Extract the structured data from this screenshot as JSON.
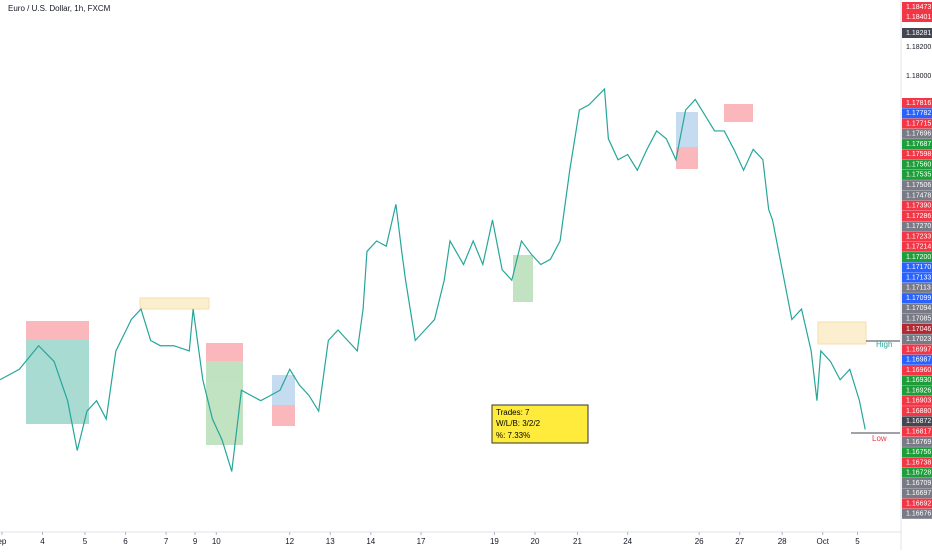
{
  "chart_data": {
    "type": "line",
    "title": "Euro / U.S. Dollar, 1h, FXCM",
    "x": [
      0,
      10,
      20,
      28,
      35,
      40,
      45,
      50,
      55,
      60,
      68,
      73,
      78,
      83,
      90,
      98,
      100,
      105,
      110,
      115,
      120,
      125,
      130,
      135,
      140,
      145,
      150,
      155,
      160,
      165,
      170,
      175,
      180,
      185,
      188,
      190,
      195,
      200,
      205,
      208,
      210,
      215,
      220,
      225,
      230,
      233,
      240,
      245,
      250,
      255,
      260,
      265,
      270,
      275,
      280,
      285,
      290,
      295,
      300,
      305,
      313,
      315,
      320,
      325,
      330,
      335,
      340,
      345,
      350,
      355,
      360,
      365,
      370,
      375,
      380,
      385,
      390,
      395,
      398,
      400,
      405,
      410,
      415,
      420,
      423,
      425,
      430,
      435,
      440,
      445,
      448
    ],
    "series": [
      {
        "name": "EURUSD",
        "color": "#26a69a",
        "values": [
          1.1715,
          1.1719,
          1.1728,
          1.1722,
          1.1707,
          1.1688,
          1.1703,
          1.1707,
          1.17,
          1.1726,
          1.1738,
          1.1742,
          1.173,
          1.1728,
          1.1728,
          1.1726,
          1.1742,
          1.1715,
          1.17,
          1.1692,
          1.168,
          1.1711,
          1.1709,
          1.1707,
          1.1709,
          1.1711,
          1.1719,
          1.1713,
          1.1709,
          1.1703,
          1.173,
          1.1734,
          1.173,
          1.1726,
          1.1742,
          1.1764,
          1.1768,
          1.1766,
          1.1782,
          1.1764,
          1.1753,
          1.173,
          1.1734,
          1.1738,
          1.1753,
          1.1768,
          1.1759,
          1.1768,
          1.1759,
          1.1776,
          1.1757,
          1.1753,
          1.1768,
          1.1763,
          1.1759,
          1.1761,
          1.1768,
          1.1795,
          1.1818,
          1.182,
          1.1826,
          1.1807,
          1.1799,
          1.1801,
          1.1795,
          1.1803,
          1.181,
          1.1807,
          1.1799,
          1.1818,
          1.1822,
          1.1816,
          1.181,
          1.181,
          1.1803,
          1.1795,
          1.1803,
          1.1799,
          1.178,
          1.1776,
          1.1757,
          1.1738,
          1.1742,
          1.1726,
          1.1707,
          1.1726,
          1.1722,
          1.1715,
          1.1719,
          1.1707,
          1.1696
        ]
      }
    ],
    "xlim": [
      0,
      466
    ],
    "ylim": [
      1.165,
      1.186
    ],
    "xticks": [
      {
        "value": 1,
        "label": "ep"
      },
      {
        "value": 22,
        "label": "4"
      },
      {
        "value": 44,
        "label": "5"
      },
      {
        "value": 65,
        "label": "6"
      },
      {
        "value": 86,
        "label": "7"
      },
      {
        "value": 101,
        "label": "9"
      },
      {
        "value": 112,
        "label": "10"
      },
      {
        "value": 150,
        "label": "12"
      },
      {
        "value": 171,
        "label": "13"
      },
      {
        "value": 192,
        "label": "14"
      },
      {
        "value": 218,
        "label": "17"
      },
      {
        "value": 256,
        "label": "19"
      },
      {
        "value": 277,
        "label": "20"
      },
      {
        "value": 299,
        "label": "21"
      },
      {
        "value": 325,
        "label": "24"
      },
      {
        "value": 362,
        "label": "26"
      },
      {
        "value": 383,
        "label": "27"
      },
      {
        "value": 405,
        "label": "28"
      },
      {
        "value": 426,
        "label": "Oct"
      },
      {
        "value": 444,
        "label": "5"
      }
    ],
    "stats": [
      "Trades: 7",
      "W/L/B:  3/2/2",
      "%:  7.33%"
    ],
    "high_label": "High",
    "low_label": "Low",
    "price_labels": [
      {
        "label": "1.18473",
        "color": "#f23645"
      },
      {
        "label": "1.18401",
        "color": "#f23645"
      },
      {
        "label": "1.18281",
        "color": "#434651"
      },
      {
        "label": "1.18200"
      },
      {
        "label": "1.18000"
      },
      {
        "label": "1.17816",
        "color": "#f23645"
      },
      {
        "label": "1.17782",
        "color": "#2962ff"
      },
      {
        "label": "1.17715",
        "color": "#f23645"
      },
      {
        "label": "1.17696",
        "color": "#787b86"
      },
      {
        "label": "1.17687",
        "color": "#1e9e3a"
      },
      {
        "label": "1.17598",
        "color": "#f23645"
      },
      {
        "label": "1.17560",
        "color": "#1e9e3a"
      },
      {
        "label": "1.17535",
        "color": "#1e9e3a"
      },
      {
        "label": "1.17506",
        "color": "#787b86"
      },
      {
        "label": "1.17478",
        "color": "#787b86"
      },
      {
        "label": "1.17390",
        "color": "#f23645"
      },
      {
        "label": "1.17286",
        "color": "#f23645"
      },
      {
        "label": "1.17270",
        "color": "#787b86"
      },
      {
        "label": "1.17233",
        "color": "#f23645"
      },
      {
        "label": "1.17214",
        "color": "#f23645"
      },
      {
        "label": "1.17200",
        "color": "#1e9e3a"
      },
      {
        "label": "1.17170",
        "color": "#2962ff"
      },
      {
        "label": "1.17133",
        "color": "#2962ff"
      },
      {
        "label": "1.17113",
        "color": "#787b86"
      },
      {
        "label": "1.17099",
        "color": "#2962ff"
      },
      {
        "label": "1.17094",
        "color": "#787b86"
      },
      {
        "label": "1.17085",
        "color": "#787b86"
      },
      {
        "label": "1.17046",
        "color": "#b22833"
      },
      {
        "label": "1.17023",
        "color": "#787b86"
      },
      {
        "label": "1.16997",
        "color": "#f23645"
      },
      {
        "label": "1.16987",
        "color": "#2962ff"
      },
      {
        "label": "1.16960",
        "color": "#f23645"
      },
      {
        "label": "1.16930",
        "color": "#1e9e3a"
      },
      {
        "label": "1.16926",
        "color": "#1e9e3a"
      },
      {
        "label": "1.16903",
        "color": "#f23645"
      },
      {
        "label": "1.16880",
        "color": "#f23645"
      },
      {
        "label": "1.16872",
        "color": "#434651"
      },
      {
        "label": "1.16817",
        "color": "#f23645"
      },
      {
        "label": "1.16769",
        "color": "#787b86"
      },
      {
        "label": "1.16756",
        "color": "#1e9e3a"
      },
      {
        "label": "1.16738",
        "color": "#f23645"
      },
      {
        "label": "1.16728",
        "color": "#1e9e3a"
      },
      {
        "label": "1.16709",
        "color": "#787b86"
      },
      {
        "label": "1.16697",
        "color": "#787b86"
      },
      {
        "label": "1.16692",
        "color": "#f23645"
      },
      {
        "label": "1.16676",
        "color": "#787b86"
      }
    ]
  }
}
